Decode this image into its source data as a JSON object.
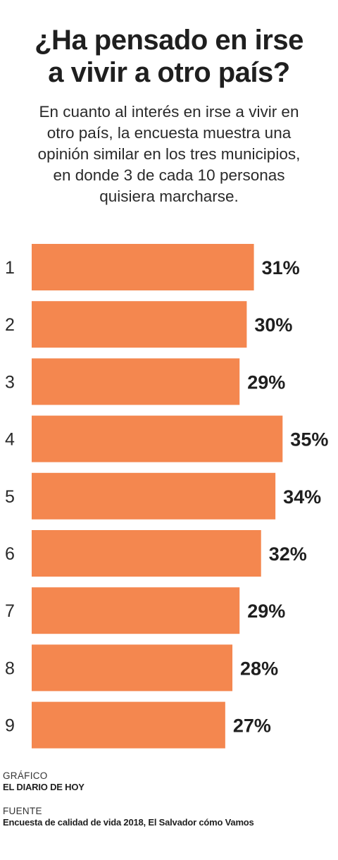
{
  "header": {
    "title_lines": [
      "¿Ha pensado en irse",
      "a vivir a otro país?"
    ],
    "subtitle_lines": [
      "En cuanto al interés en irse a vivir en",
      "otro país, la encuesta muestra una",
      "opinión similar en los tres municipios,",
      "en donde 3 de cada 10 personas",
      "quisiera marcharse."
    ]
  },
  "chart_data": {
    "type": "bar",
    "orientation": "horizontal",
    "categories": [
      "1",
      "2",
      "3",
      "4",
      "5",
      "6",
      "7",
      "8",
      "9"
    ],
    "values": [
      31,
      30,
      29,
      35,
      34,
      32,
      29,
      28,
      27
    ],
    "value_labels": [
      "31%",
      "30%",
      "29%",
      "35%",
      "34%",
      "32%",
      "29%",
      "28%",
      "27%"
    ],
    "bar_color": "#f4874f",
    "grid": false,
    "legend": "none"
  },
  "footer": {
    "graphic_label": "GRÁFICO",
    "graphic_value": "EL DIARIO DE HOY",
    "source_label": "FUENTE",
    "source_value": "Encuesta de calidad de vida 2018, El Salvador cómo Vamos"
  }
}
